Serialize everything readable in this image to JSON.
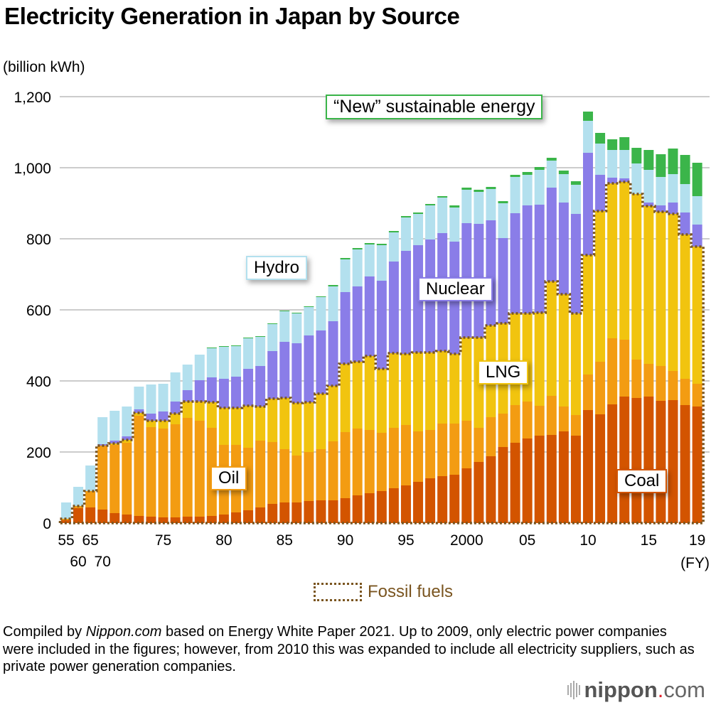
{
  "title": "Electricity Generation in Japan by Source",
  "unit_label": "(billion kWh)",
  "labels": {
    "new": "“New” sustainable energy",
    "hydro": "Hydro",
    "nuclear": "Nuclear",
    "lng": "LNG",
    "oil": "Oil",
    "coal": "Coal"
  },
  "legend": {
    "fossil": "Fossil fuels"
  },
  "x_unit": "(FY)",
  "footnote": {
    "prefix": "Compiled by ",
    "source_italic": "Nippon.com",
    "rest": " based on Energy White Paper 2021. Up to 2009, only electric power companies were included in the figures; however, from 2010 this was expanded to include all electricity suppliers, such as private power generation companies."
  },
  "brand": {
    "name": "nippon",
    "dot": ".",
    "tld": "com"
  },
  "colors": {
    "coal": "#d35400",
    "oil": "#f39c12",
    "lng": "#f1c40f",
    "nuclear": "#8a7de8",
    "hydro": "#b3e0ee",
    "new": "#3bb54a",
    "fossil_border": "#7a5520",
    "grid": "#cccccc"
  },
  "chart_data": {
    "type": "bar",
    "stacked": true,
    "title": "Electricity Generation in Japan by Source",
    "xlabel": "(FY)",
    "ylabel": "(billion kWh)",
    "ylim": [
      0,
      1200
    ],
    "yticks": [
      0,
      200,
      400,
      600,
      800,
      1000,
      1200
    ],
    "ytick_labels": [
      "0",
      "200",
      "400",
      "600",
      "800",
      "1,000",
      "1,200"
    ],
    "grid": true,
    "categories": [
      1955,
      1960,
      1965,
      1970,
      1971,
      1972,
      1973,
      1974,
      1975,
      1976,
      1977,
      1978,
      1979,
      1980,
      1981,
      1982,
      1983,
      1984,
      1985,
      1986,
      1987,
      1988,
      1989,
      1990,
      1991,
      1992,
      1993,
      1994,
      1995,
      1996,
      1997,
      1998,
      1999,
      2000,
      2001,
      2002,
      2003,
      2004,
      2005,
      2006,
      2007,
      2008,
      2009,
      2010,
      2011,
      2012,
      2013,
      2014,
      2015,
      2016,
      2017,
      2018,
      2019
    ],
    "xtick_labels": [
      {
        "year": 1955,
        "label": "55",
        "row": 1
      },
      {
        "year": 1960,
        "label": "60",
        "row": 2
      },
      {
        "year": 1965,
        "label": "65",
        "row": 1
      },
      {
        "year": 1970,
        "label": "70",
        "row": 2
      },
      {
        "year": 1975,
        "label": "75",
        "row": 1
      },
      {
        "year": 1980,
        "label": "80",
        "row": 1
      },
      {
        "year": 1985,
        "label": "85",
        "row": 1
      },
      {
        "year": 1990,
        "label": "90",
        "row": 1
      },
      {
        "year": 1995,
        "label": "95",
        "row": 1
      },
      {
        "year": 2000,
        "label": "2000",
        "row": 1
      },
      {
        "year": 2005,
        "label": "05",
        "row": 1
      },
      {
        "year": 2010,
        "label": "10",
        "row": 1
      },
      {
        "year": 2015,
        "label": "15",
        "row": 1
      },
      {
        "year": 2019,
        "label": "19",
        "row": 1
      }
    ],
    "series": [
      {
        "name": "Coal",
        "key": "coal",
        "values": [
          8,
          42,
          44,
          38,
          28,
          24,
          20,
          18,
          16,
          16,
          18,
          18,
          20,
          24,
          30,
          36,
          44,
          54,
          58,
          58,
          62,
          64,
          64,
          70,
          78,
          84,
          90,
          98,
          106,
          116,
          126,
          132,
          136,
          154,
          172,
          188,
          214,
          226,
          238,
          246,
          248,
          258,
          246,
          318,
          306,
          334,
          356,
          352,
          356,
          344,
          346,
          332,
          328
        ]
      },
      {
        "name": "Oil",
        "key": "oil",
        "values": [
          4,
          6,
          46,
          180,
          192,
          202,
          282,
          252,
          250,
          262,
          278,
          270,
          248,
          196,
          190,
          176,
          188,
          174,
          150,
          132,
          138,
          144,
          166,
          186,
          188,
          178,
          164,
          170,
          170,
          142,
          136,
          148,
          144,
          134,
          96,
          110,
          94,
          106,
          104,
          84,
          110,
          70,
          58,
          100,
          148,
          186,
          160,
          108,
          92,
          98,
          82,
          74,
          64
        ]
      },
      {
        "name": "LNG",
        "key": "lng",
        "values": [
          0,
          0,
          0,
          0,
          4,
          8,
          8,
          18,
          22,
          30,
          46,
          54,
          72,
          104,
          104,
          118,
          96,
          122,
          144,
          148,
          140,
          156,
          156,
          192,
          188,
          208,
          180,
          210,
          200,
          222,
          218,
          204,
          196,
          234,
          254,
          258,
          254,
          258,
          248,
          262,
          322,
          316,
          286,
          336,
          424,
          436,
          444,
          466,
          444,
          434,
          442,
          406,
          386
        ]
      },
      {
        "name": "Nuclear",
        "key": "nuclear",
        "values": [
          0,
          0,
          0,
          4,
          8,
          10,
          10,
          20,
          26,
          34,
          32,
          60,
          70,
          82,
          88,
          104,
          114,
          134,
          158,
          168,
          188,
          178,
          182,
          202,
          212,
          224,
          248,
          258,
          290,
          302,
          318,
          332,
          316,
          322,
          320,
          296,
          240,
          282,
          304,
          304,
          264,
          258,
          280,
          288,
          102,
          16,
          10,
          0,
          10,
          18,
          32,
          62,
          62
        ]
      },
      {
        "name": "Hydro",
        "key": "hydro",
        "values": [
          46,
          54,
          72,
          76,
          84,
          84,
          64,
          82,
          78,
          82,
          72,
          72,
          82,
          90,
          86,
          86,
          82,
          76,
          86,
          84,
          80,
          94,
          98,
          92,
          104,
          90,
          100,
          82,
          94,
          88,
          96,
          100,
          96,
          94,
          90,
          88,
          98,
          102,
          86,
          98,
          76,
          80,
          82,
          90,
          88,
          78,
          80,
          86,
          92,
          80,
          80,
          80,
          80
        ]
      },
      {
        "name": "New sustainable energy",
        "key": "new",
        "values": [
          0,
          0,
          0,
          0,
          0,
          0,
          0,
          0,
          0,
          0,
          0,
          0,
          2,
          2,
          2,
          2,
          2,
          2,
          2,
          2,
          2,
          2,
          4,
          4,
          4,
          4,
          4,
          4,
          4,
          4,
          4,
          4,
          6,
          6,
          6,
          6,
          6,
          6,
          8,
          8,
          8,
          10,
          10,
          26,
          30,
          30,
          36,
          44,
          56,
          64,
          72,
          82,
          94
        ]
      }
    ],
    "fossil_fuel_outline": "Coal + Oil + LNG (dotted outline)",
    "annotations": [
      "“New” sustainable energy",
      "Hydro",
      "Nuclear",
      "LNG",
      "Oil",
      "Coal"
    ],
    "legend": [
      "Fossil fuels"
    ],
    "legend_position": "bottom-center"
  }
}
